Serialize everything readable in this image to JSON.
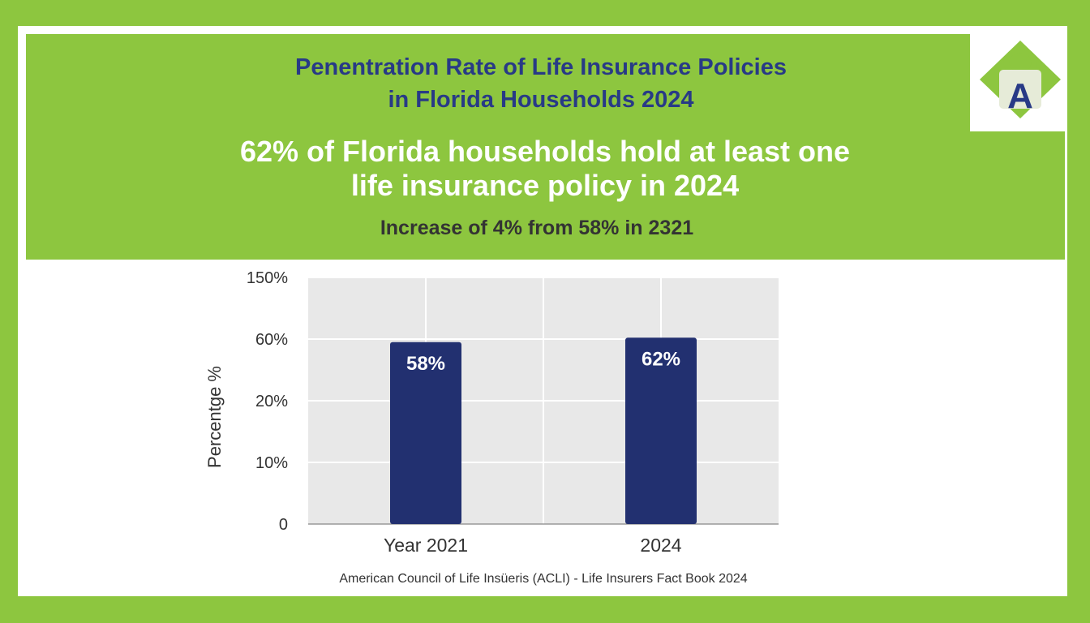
{
  "title_lines": [
    "Penentration Rate of Life Insurance Policies",
    "in Florida Households 2024"
  ],
  "headline_lines": [
    "62% of Florida households hold at least one",
    "life insurance policy in 2024"
  ],
  "subheadline": "Increase of 4% from 58% in 2321",
  "logo_letter": "A",
  "source": "American Council of Life Insüeris (ACLI) - Life Insurers Fact Book 2024",
  "colors": {
    "background": "#8dc63f",
    "title": "#283a86",
    "bar": "#223070",
    "plot_background": "#e8e8e8"
  },
  "chart_data": {
    "type": "bar",
    "categories": [
      "Year 2021",
      "2024"
    ],
    "values": [
      58,
      62
    ],
    "value_labels": [
      "58%",
      "62%"
    ],
    "ylabel": "Percentge %",
    "y_tick_labels": [
      "0",
      "10%",
      "20%",
      "60%",
      "150%"
    ],
    "y_scale_note": "tick labels are non-uniform and printed as shown",
    "grid": true,
    "legend": "none"
  }
}
